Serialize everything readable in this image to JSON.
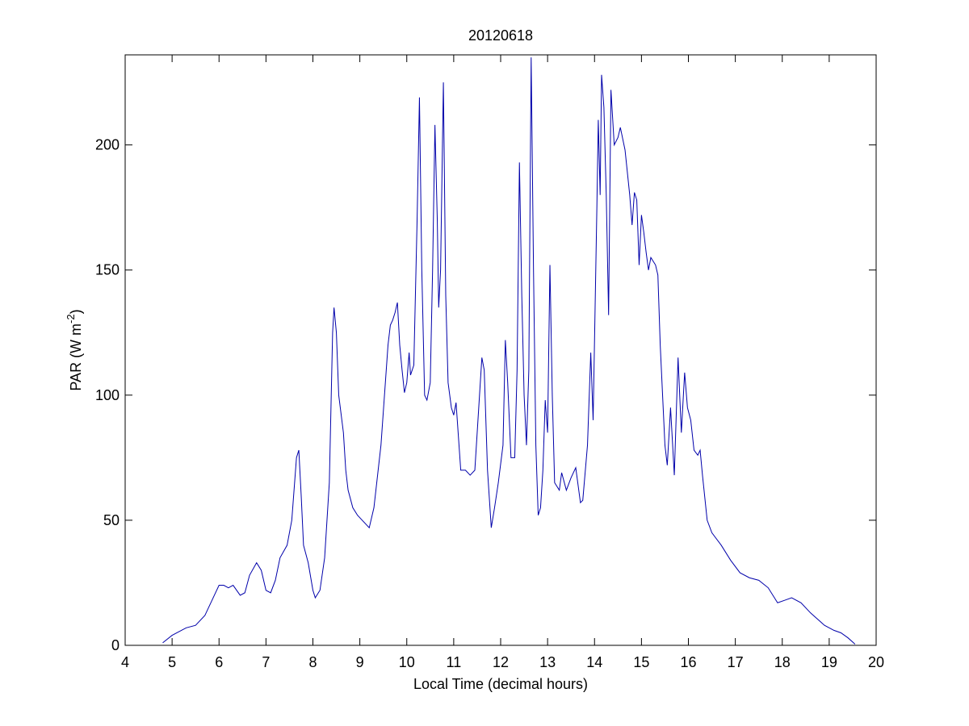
{
  "chart_data": {
    "type": "line",
    "title": "20120618",
    "xlabel": "Local Time (decimal hours)",
    "ylabel": [
      "PAR (W m",
      "-2",
      ")"
    ],
    "xlim": [
      4,
      20
    ],
    "ylim": [
      0,
      236
    ],
    "xticks": [
      4,
      5,
      6,
      7,
      8,
      9,
      10,
      11,
      12,
      13,
      14,
      15,
      16,
      17,
      18,
      19,
      20
    ],
    "yticks": [
      0,
      50,
      100,
      150,
      200
    ],
    "grid": false,
    "series": [
      {
        "name": "PAR",
        "color": "#0000aa",
        "x": [
          4.8,
          5.0,
          5.3,
          5.5,
          5.7,
          5.9,
          6.0,
          6.1,
          6.2,
          6.3,
          6.45,
          6.55,
          6.65,
          6.8,
          6.9,
          7.0,
          7.1,
          7.2,
          7.3,
          7.45,
          7.55,
          7.65,
          7.7,
          7.75,
          7.8,
          7.9,
          8.0,
          8.05,
          8.15,
          8.25,
          8.35,
          8.42,
          8.45,
          8.5,
          8.55,
          8.65,
          8.7,
          8.75,
          8.85,
          8.95,
          9.05,
          9.2,
          9.3,
          9.45,
          9.6,
          9.65,
          9.7,
          9.75,
          9.8,
          9.85,
          9.9,
          9.95,
          10.0,
          10.05,
          10.08,
          10.15,
          10.22,
          10.27,
          10.32,
          10.38,
          10.43,
          10.5,
          10.55,
          10.6,
          10.65,
          10.68,
          10.72,
          10.78,
          10.83,
          10.88,
          10.95,
          11.0,
          11.05,
          11.15,
          11.25,
          11.35,
          11.45,
          11.55,
          11.6,
          11.65,
          11.72,
          11.8,
          11.87,
          11.95,
          12.05,
          12.1,
          12.15,
          12.22,
          12.3,
          12.35,
          12.4,
          12.45,
          12.5,
          12.55,
          12.6,
          12.65,
          12.7,
          12.75,
          12.8,
          12.85,
          12.9,
          12.95,
          13.0,
          13.05,
          13.1,
          13.15,
          13.25,
          13.3,
          13.4,
          13.5,
          13.6,
          13.7,
          13.75,
          13.85,
          13.92,
          13.97,
          14.05,
          14.08,
          14.12,
          14.15,
          14.2,
          14.25,
          14.3,
          14.35,
          14.42,
          14.5,
          14.55,
          14.65,
          14.75,
          14.8,
          14.85,
          14.9,
          14.95,
          15.0,
          15.05,
          15.1,
          15.15,
          15.2,
          15.3,
          15.35,
          15.4,
          15.5,
          15.55,
          15.62,
          15.7,
          15.78,
          15.85,
          15.92,
          15.98,
          16.05,
          16.12,
          16.2,
          16.25,
          16.3,
          16.4,
          16.5,
          16.7,
          16.9,
          17.1,
          17.3,
          17.5,
          17.7,
          17.9,
          18.05,
          18.2,
          18.4,
          18.6,
          18.9,
          19.1,
          19.25,
          19.4,
          19.55
        ],
        "values": [
          1,
          4,
          7,
          8,
          12,
          20,
          24,
          24,
          23,
          24,
          20,
          21,
          28,
          33,
          30,
          22,
          21,
          26,
          35,
          40,
          50,
          75,
          78,
          60,
          40,
          33,
          22,
          19,
          22,
          35,
          65,
          125,
          135,
          125,
          100,
          85,
          70,
          62,
          55,
          52,
          50,
          47,
          55,
          80,
          120,
          128,
          130,
          133,
          137,
          120,
          110,
          101,
          105,
          117,
          108,
          112,
          170,
          219,
          150,
          100,
          98,
          105,
          150,
          208,
          170,
          135,
          150,
          225,
          140,
          105,
          95,
          92,
          97,
          70,
          70,
          68,
          70,
          100,
          115,
          110,
          70,
          47,
          55,
          65,
          80,
          122,
          105,
          75,
          75,
          110,
          193,
          140,
          100,
          80,
          110,
          235,
          150,
          80,
          52,
          55,
          70,
          98,
          85,
          152,
          100,
          65,
          62,
          69,
          62,
          67,
          71,
          57,
          58,
          80,
          117,
          90,
          175,
          210,
          180,
          228,
          215,
          180,
          132,
          222,
          200,
          203,
          207,
          198,
          180,
          168,
          181,
          178,
          152,
          172,
          165,
          157,
          150,
          155,
          152,
          148,
          120,
          80,
          72,
          95,
          68,
          115,
          85,
          109,
          95,
          90,
          78,
          76,
          78,
          68,
          50,
          45,
          40,
          34,
          29,
          27,
          26,
          23,
          17,
          18,
          19,
          17,
          13,
          8,
          6,
          5,
          3,
          0.5
        ]
      }
    ]
  }
}
